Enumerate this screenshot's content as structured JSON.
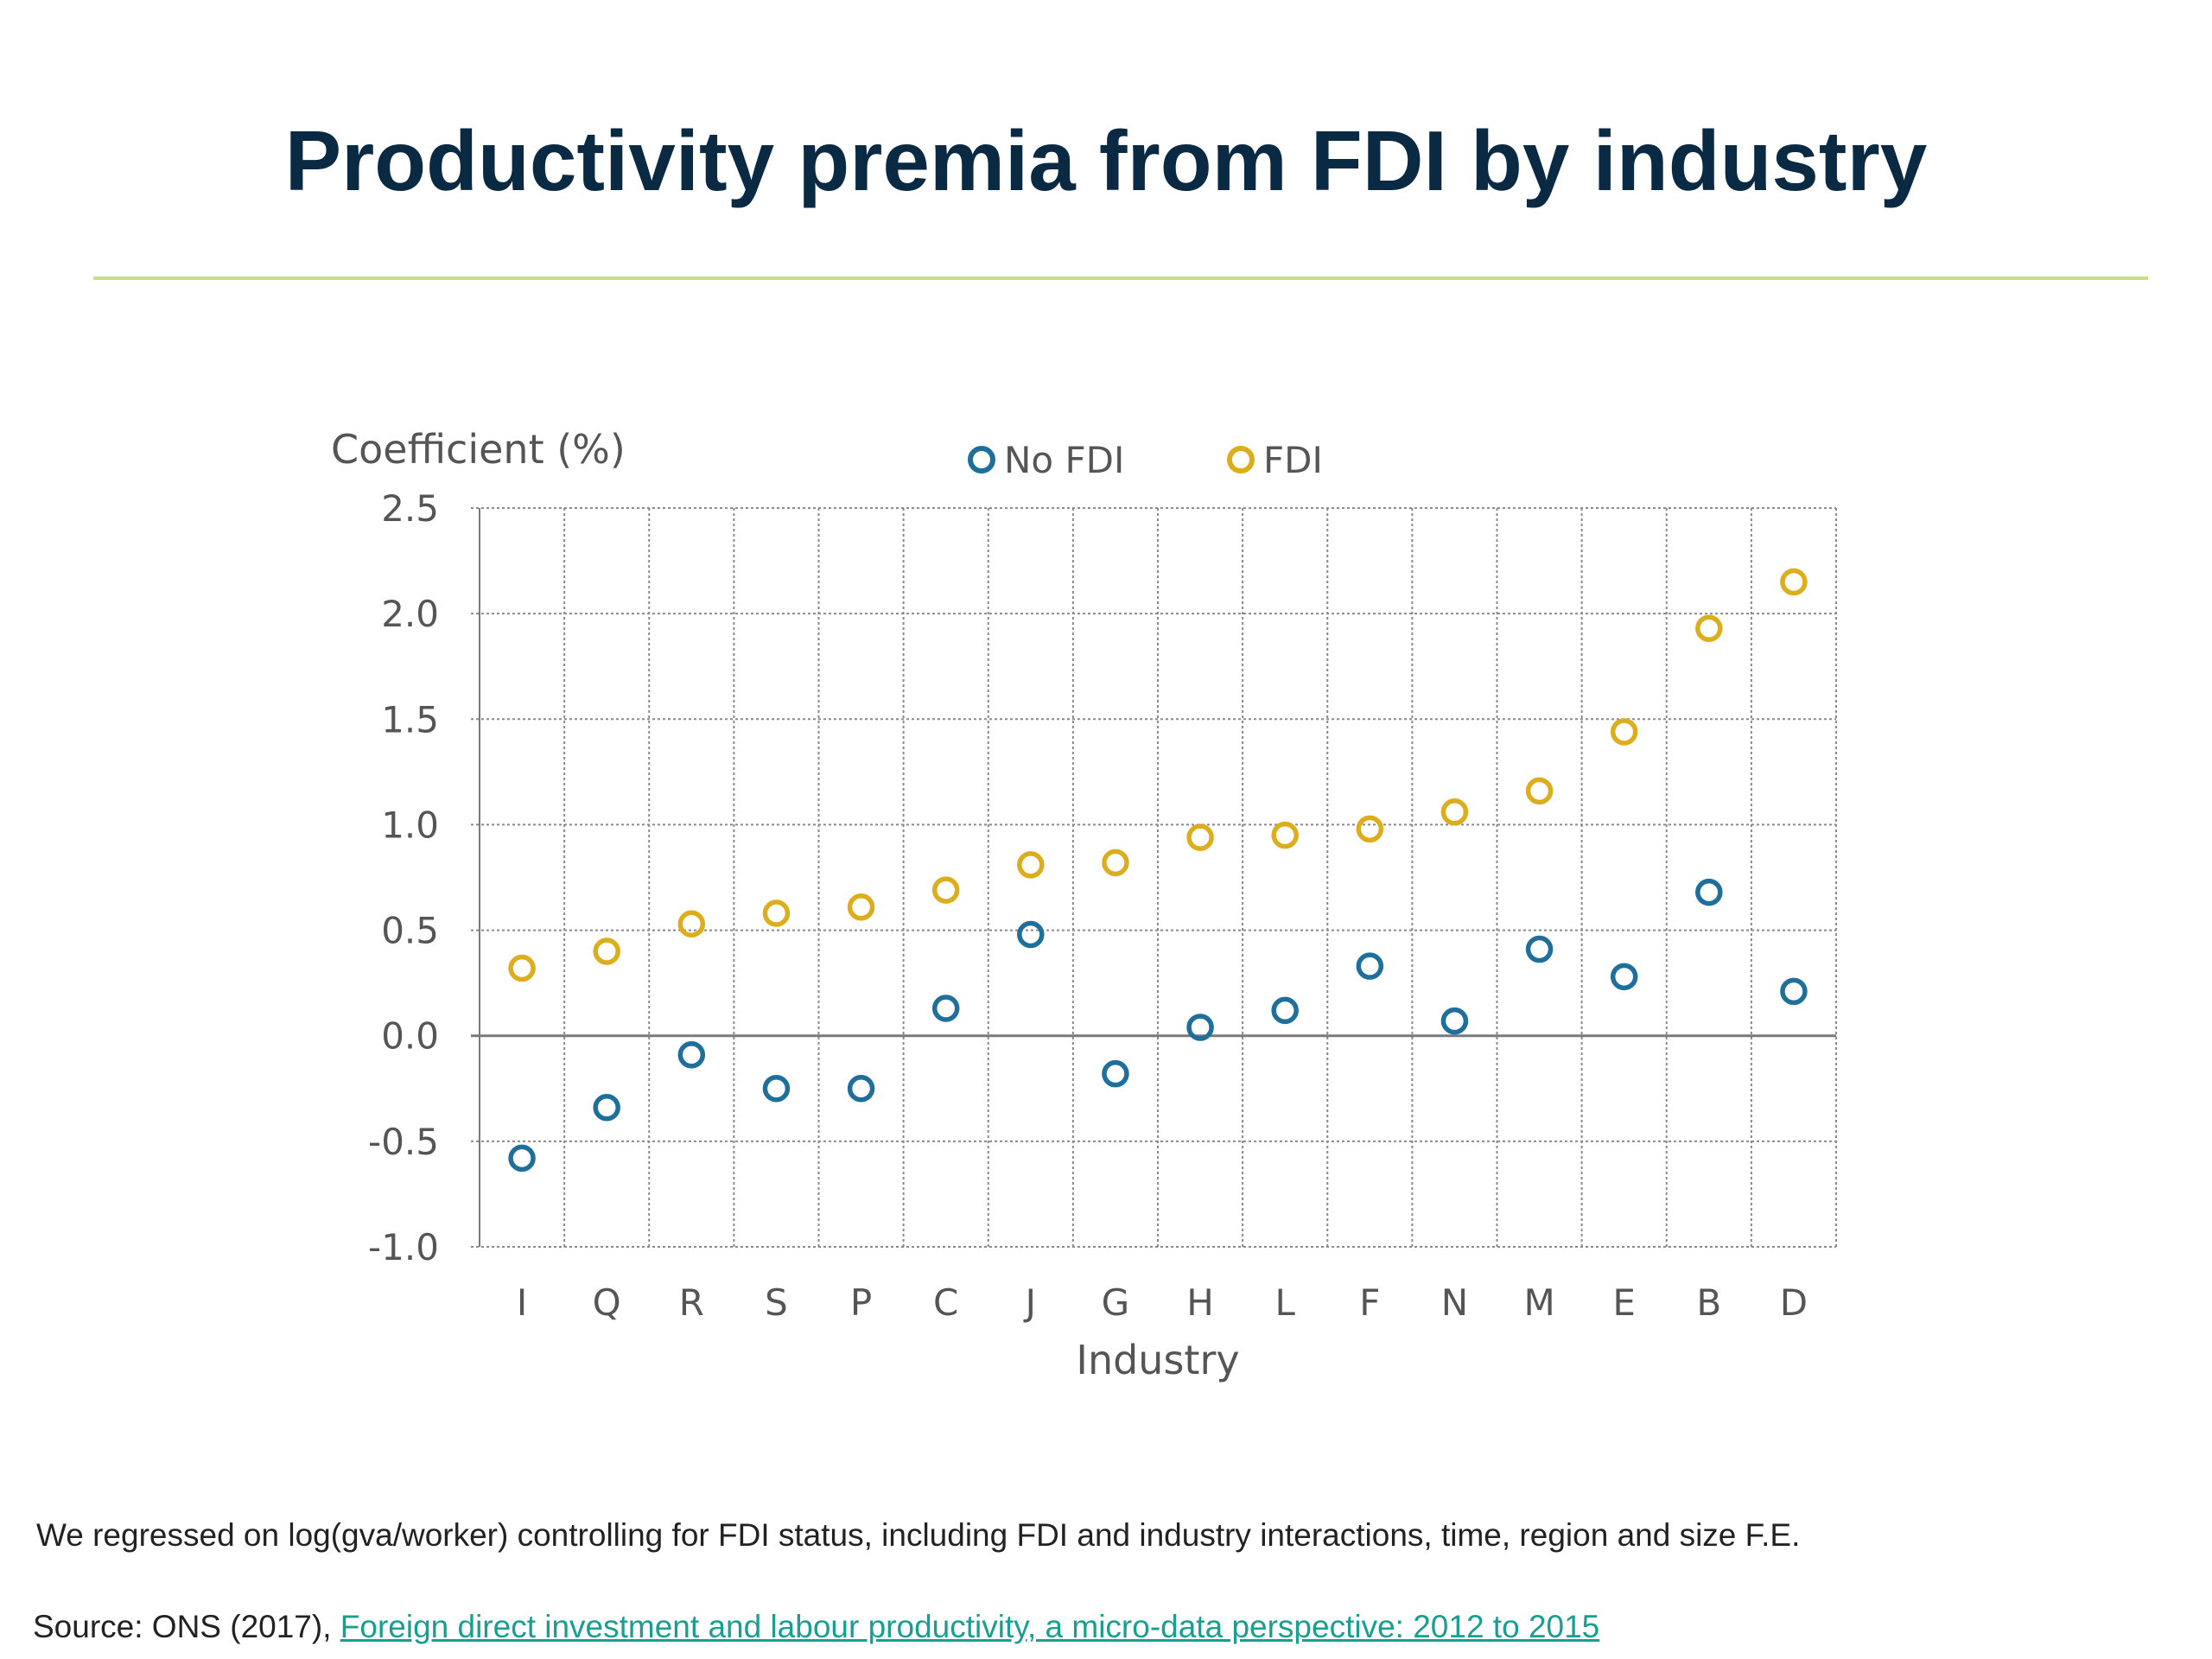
{
  "slide": {
    "title": "Productivity premia from FDI by industry",
    "note": "We regressed on log(gva/worker) controlling for FDI status, including FDI and industry interactions, time, region and size F.E.",
    "source_prefix": "Source: ONS (2017), ",
    "source_link": "Foreign direct investment and labour productivity, a micro-data perspective: 2012 to 2015"
  },
  "colors": {
    "title": "#0a2a44",
    "rule": "#c8df8a",
    "no_fdi": "#1f6f9c",
    "fdi": "#dcae1d",
    "link": "#1a9e8f"
  },
  "chart_data": {
    "type": "scatter",
    "ylabel": "Coefficient (%)",
    "xlabel": "Industry",
    "categories": [
      "I",
      "Q",
      "R",
      "S",
      "P",
      "C",
      "J",
      "G",
      "H",
      "L",
      "F",
      "N",
      "M",
      "E",
      "B",
      "D"
    ],
    "ylim": [
      -1.0,
      2.5
    ],
    "yticks": [
      "-1.0",
      "-0.5",
      "0.0",
      "0.5",
      "1.0",
      "1.5",
      "2.0",
      "2.5"
    ],
    "grid": true,
    "legend_position": "top",
    "series": [
      {
        "name": "No FDI",
        "color": "#1f6f9c",
        "values": [
          -0.58,
          -0.34,
          -0.09,
          -0.25,
          -0.25,
          0.13,
          0.48,
          -0.18,
          0.04,
          0.12,
          0.33,
          0.07,
          0.41,
          0.28,
          0.68,
          0.21
        ]
      },
      {
        "name": "FDI",
        "color": "#dcae1d",
        "values": [
          0.32,
          0.4,
          0.53,
          0.58,
          0.61,
          0.69,
          0.81,
          0.82,
          0.94,
          0.95,
          0.98,
          1.06,
          1.16,
          1.44,
          1.93,
          2.15
        ]
      }
    ]
  }
}
